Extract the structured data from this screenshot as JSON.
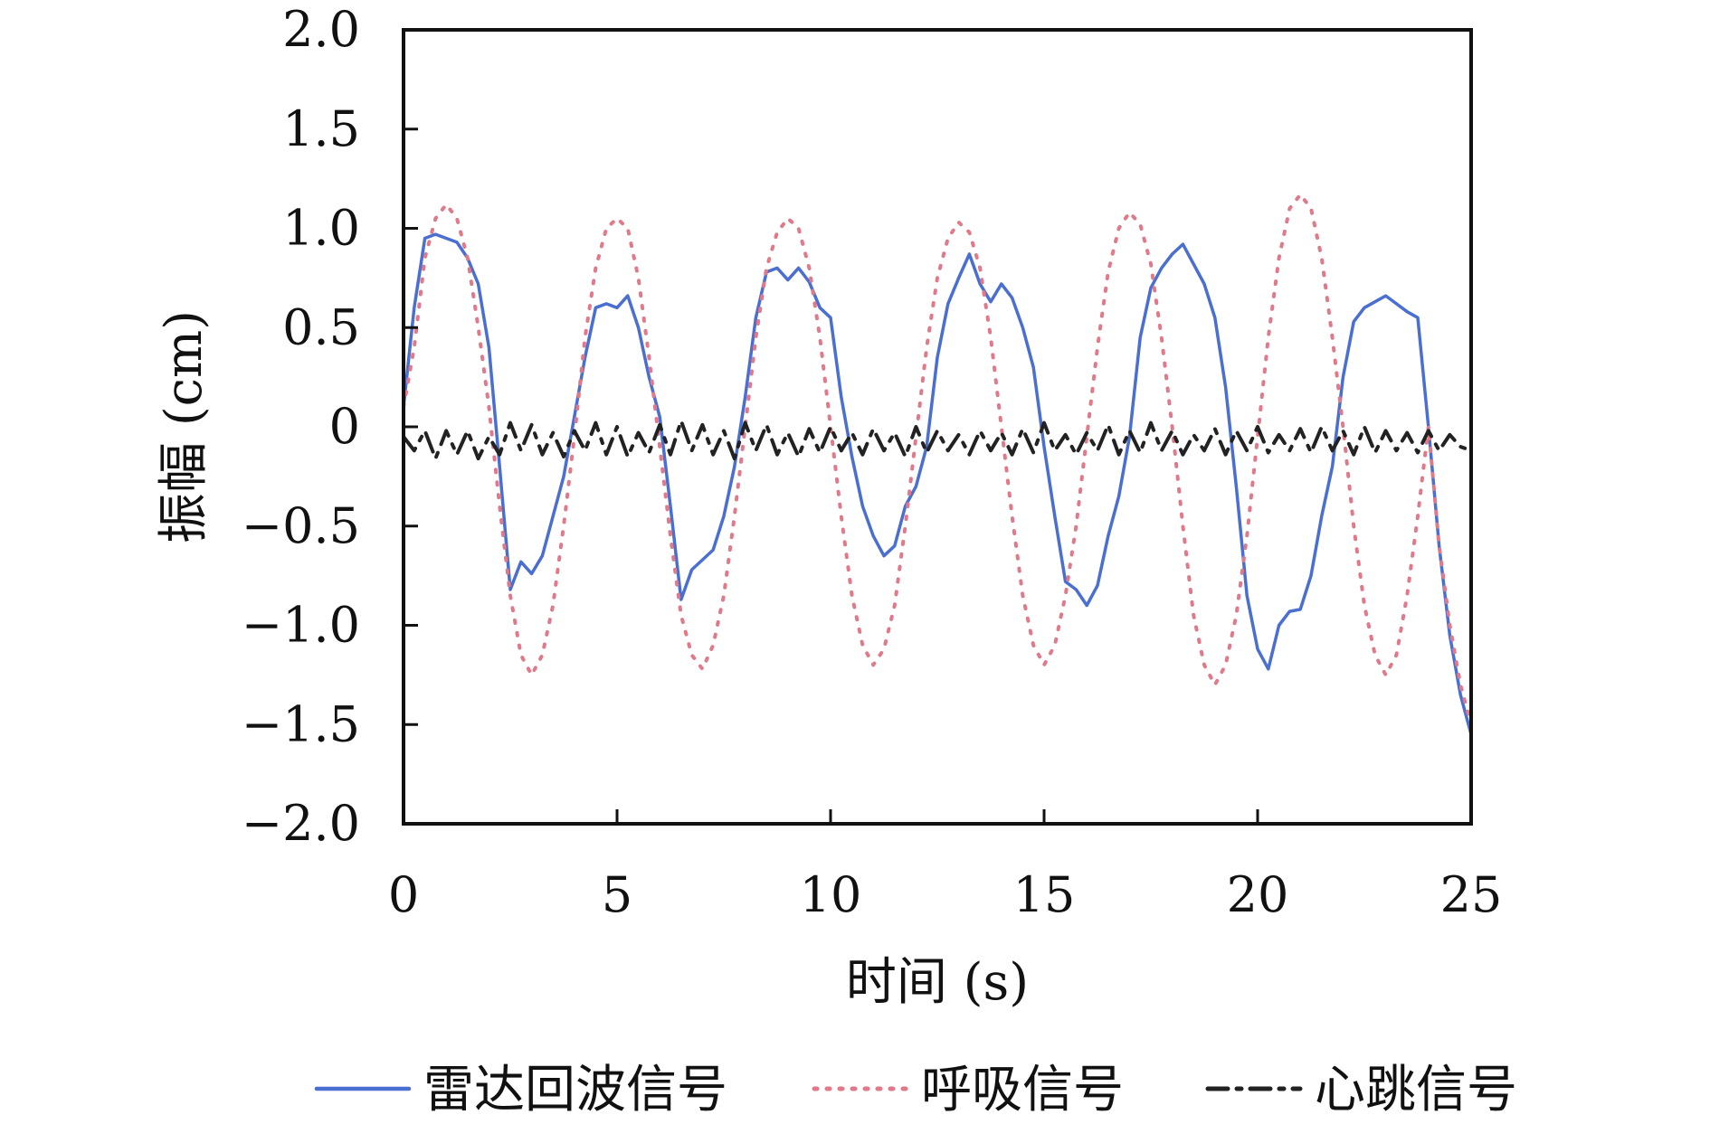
{
  "chart_data": {
    "type": "line",
    "xlabel": "时间 (s)",
    "ylabel": "振幅 (cm)",
    "xlim": [
      0,
      25
    ],
    "ylim": [
      -2.0,
      2.0
    ],
    "x_ticks": [
      "0",
      "5",
      "10",
      "15",
      "20",
      "25"
    ],
    "y_ticks": [
      "2.0",
      "1.5",
      "1.0",
      "0.5",
      "0",
      "−0.5",
      "−1.0",
      "−1.5",
      "−2.0"
    ],
    "grid": false,
    "legend_position": "bottom",
    "series": [
      {
        "name": "雷达回波信号",
        "style": "solid",
        "color": "#4a6fd0",
        "points": [
          [
            0,
            0.1
          ],
          [
            0.25,
            0.6
          ],
          [
            0.5,
            0.95
          ],
          [
            0.75,
            0.97
          ],
          [
            1.0,
            0.95
          ],
          [
            1.25,
            0.93
          ],
          [
            1.5,
            0.85
          ],
          [
            1.75,
            0.72
          ],
          [
            2.0,
            0.4
          ],
          [
            2.25,
            -0.2
          ],
          [
            2.5,
            -0.82
          ],
          [
            2.75,
            -0.68
          ],
          [
            3.0,
            -0.74
          ],
          [
            3.25,
            -0.65
          ],
          [
            3.5,
            -0.45
          ],
          [
            3.75,
            -0.25
          ],
          [
            4.0,
            0.05
          ],
          [
            4.25,
            0.35
          ],
          [
            4.5,
            0.6
          ],
          [
            4.75,
            0.62
          ],
          [
            5.0,
            0.6
          ],
          [
            5.25,
            0.66
          ],
          [
            5.5,
            0.5
          ],
          [
            5.75,
            0.25
          ],
          [
            6.0,
            0.05
          ],
          [
            6.25,
            -0.4
          ],
          [
            6.5,
            -0.87
          ],
          [
            6.75,
            -0.72
          ],
          [
            7.0,
            -0.67
          ],
          [
            7.25,
            -0.62
          ],
          [
            7.5,
            -0.45
          ],
          [
            7.75,
            -0.2
          ],
          [
            8.0,
            0.15
          ],
          [
            8.25,
            0.55
          ],
          [
            8.5,
            0.78
          ],
          [
            8.75,
            0.8
          ],
          [
            9.0,
            0.74
          ],
          [
            9.25,
            0.8
          ],
          [
            9.5,
            0.73
          ],
          [
            9.75,
            0.6
          ],
          [
            10.0,
            0.55
          ],
          [
            10.25,
            0.15
          ],
          [
            10.5,
            -0.15
          ],
          [
            10.75,
            -0.4
          ],
          [
            11.0,
            -0.55
          ],
          [
            11.25,
            -0.65
          ],
          [
            11.5,
            -0.6
          ],
          [
            11.75,
            -0.4
          ],
          [
            12.0,
            -0.3
          ],
          [
            12.25,
            -0.1
          ],
          [
            12.5,
            0.35
          ],
          [
            12.75,
            0.62
          ],
          [
            13.0,
            0.75
          ],
          [
            13.25,
            0.87
          ],
          [
            13.5,
            0.72
          ],
          [
            13.75,
            0.63
          ],
          [
            14.0,
            0.72
          ],
          [
            14.25,
            0.65
          ],
          [
            14.5,
            0.5
          ],
          [
            14.75,
            0.3
          ],
          [
            15.0,
            -0.1
          ],
          [
            15.25,
            -0.45
          ],
          [
            15.5,
            -0.78
          ],
          [
            15.75,
            -0.82
          ],
          [
            16.0,
            -0.9
          ],
          [
            16.25,
            -0.8
          ],
          [
            16.5,
            -0.55
          ],
          [
            16.75,
            -0.35
          ],
          [
            17.0,
            -0.05
          ],
          [
            17.25,
            0.45
          ],
          [
            17.5,
            0.7
          ],
          [
            17.75,
            0.8
          ],
          [
            18.0,
            0.87
          ],
          [
            18.25,
            0.92
          ],
          [
            18.5,
            0.82
          ],
          [
            18.75,
            0.72
          ],
          [
            19.0,
            0.55
          ],
          [
            19.25,
            0.2
          ],
          [
            19.5,
            -0.3
          ],
          [
            19.75,
            -0.85
          ],
          [
            20.0,
            -1.12
          ],
          [
            20.25,
            -1.22
          ],
          [
            20.5,
            -1.0
          ],
          [
            20.75,
            -0.93
          ],
          [
            21.0,
            -0.92
          ],
          [
            21.25,
            -0.75
          ],
          [
            21.5,
            -0.45
          ],
          [
            21.75,
            -0.2
          ],
          [
            22.0,
            0.25
          ],
          [
            22.25,
            0.53
          ],
          [
            22.5,
            0.6
          ],
          [
            22.75,
            0.63
          ],
          [
            23.0,
            0.66
          ],
          [
            23.25,
            0.62
          ],
          [
            23.5,
            0.58
          ],
          [
            23.75,
            0.55
          ],
          [
            24.0,
            0.0
          ],
          [
            24.25,
            -0.6
          ],
          [
            24.5,
            -1.05
          ],
          [
            24.75,
            -1.35
          ],
          [
            25.0,
            -1.55
          ]
        ]
      },
      {
        "name": "呼吸信号",
        "style": "dotted",
        "color": "#e07a8a",
        "points": [
          [
            0,
            0.1
          ],
          [
            0.25,
            0.4
          ],
          [
            0.5,
            0.85
          ],
          [
            0.75,
            1.05
          ],
          [
            1.0,
            1.12
          ],
          [
            1.25,
            1.05
          ],
          [
            1.5,
            0.85
          ],
          [
            1.75,
            0.5
          ],
          [
            2.0,
            0.1
          ],
          [
            2.25,
            -0.4
          ],
          [
            2.5,
            -0.85
          ],
          [
            2.75,
            -1.15
          ],
          [
            3.0,
            -1.25
          ],
          [
            3.25,
            -1.15
          ],
          [
            3.5,
            -0.9
          ],
          [
            3.75,
            -0.5
          ],
          [
            4.0,
            -0.05
          ],
          [
            4.25,
            0.45
          ],
          [
            4.5,
            0.8
          ],
          [
            4.75,
            1.0
          ],
          [
            5.0,
            1.05
          ],
          [
            5.25,
            1.0
          ],
          [
            5.5,
            0.75
          ],
          [
            5.75,
            0.35
          ],
          [
            6.0,
            -0.1
          ],
          [
            6.25,
            -0.55
          ],
          [
            6.5,
            -0.95
          ],
          [
            6.75,
            -1.15
          ],
          [
            7.0,
            -1.22
          ],
          [
            7.25,
            -1.1
          ],
          [
            7.5,
            -0.85
          ],
          [
            7.75,
            -0.45
          ],
          [
            8.0,
            0.0
          ],
          [
            8.25,
            0.45
          ],
          [
            8.5,
            0.8
          ],
          [
            8.75,
            0.98
          ],
          [
            9.0,
            1.05
          ],
          [
            9.25,
            1.0
          ],
          [
            9.5,
            0.8
          ],
          [
            9.75,
            0.45
          ],
          [
            10.0,
            0.0
          ],
          [
            10.25,
            -0.45
          ],
          [
            10.5,
            -0.85
          ],
          [
            10.75,
            -1.1
          ],
          [
            11.0,
            -1.2
          ],
          [
            11.25,
            -1.12
          ],
          [
            11.5,
            -0.9
          ],
          [
            11.75,
            -0.5
          ],
          [
            12.0,
            -0.05
          ],
          [
            12.25,
            0.4
          ],
          [
            12.5,
            0.75
          ],
          [
            12.75,
            0.95
          ],
          [
            13.0,
            1.03
          ],
          [
            13.25,
            0.98
          ],
          [
            13.5,
            0.8
          ],
          [
            13.75,
            0.45
          ],
          [
            14.0,
            0.0
          ],
          [
            14.25,
            -0.45
          ],
          [
            14.5,
            -0.85
          ],
          [
            14.75,
            -1.1
          ],
          [
            15.0,
            -1.2
          ],
          [
            15.25,
            -1.1
          ],
          [
            15.5,
            -0.85
          ],
          [
            15.75,
            -0.5
          ],
          [
            16.0,
            -0.05
          ],
          [
            16.25,
            0.4
          ],
          [
            16.5,
            0.78
          ],
          [
            16.75,
            1.0
          ],
          [
            17.0,
            1.08
          ],
          [
            17.25,
            1.02
          ],
          [
            17.5,
            0.82
          ],
          [
            17.75,
            0.45
          ],
          [
            18.0,
            0.0
          ],
          [
            18.25,
            -0.5
          ],
          [
            18.5,
            -0.95
          ],
          [
            18.75,
            -1.2
          ],
          [
            19.0,
            -1.3
          ],
          [
            19.25,
            -1.2
          ],
          [
            19.5,
            -0.95
          ],
          [
            19.75,
            -0.55
          ],
          [
            20.0,
            -0.05
          ],
          [
            20.25,
            0.45
          ],
          [
            20.5,
            0.85
          ],
          [
            20.75,
            1.1
          ],
          [
            21.0,
            1.17
          ],
          [
            21.25,
            1.1
          ],
          [
            21.5,
            0.85
          ],
          [
            21.75,
            0.45
          ],
          [
            22.0,
            0.0
          ],
          [
            22.25,
            -0.5
          ],
          [
            22.5,
            -0.9
          ],
          [
            22.75,
            -1.15
          ],
          [
            23.0,
            -1.25
          ],
          [
            23.25,
            -1.15
          ],
          [
            23.5,
            -0.85
          ],
          [
            23.75,
            -0.45
          ],
          [
            24.0,
            0.0
          ],
          [
            24.25,
            -0.6
          ],
          [
            24.5,
            -1.0
          ],
          [
            24.75,
            -1.3
          ],
          [
            25.0,
            -1.5
          ]
        ]
      },
      {
        "name": "心跳信号",
        "style": "dashdot",
        "color": "#222222",
        "points": [
          [
            0,
            -0.05
          ],
          [
            0.25,
            -0.12
          ],
          [
            0.5,
            -0.02
          ],
          [
            0.75,
            -0.16
          ],
          [
            1.0,
            -0.02
          ],
          [
            1.25,
            -0.14
          ],
          [
            1.5,
            -0.02
          ],
          [
            1.75,
            -0.16
          ],
          [
            2.0,
            -0.05
          ],
          [
            2.25,
            -0.14
          ],
          [
            2.5,
            0.02
          ],
          [
            2.75,
            -0.12
          ],
          [
            3.0,
            0.01
          ],
          [
            3.25,
            -0.14
          ],
          [
            3.5,
            -0.03
          ],
          [
            3.75,
            -0.15
          ],
          [
            4.0,
            -0.02
          ],
          [
            4.25,
            -0.12
          ],
          [
            4.5,
            0.02
          ],
          [
            4.75,
            -0.14
          ],
          [
            5.0,
            0.0
          ],
          [
            5.25,
            -0.15
          ],
          [
            5.5,
            -0.03
          ],
          [
            5.75,
            -0.13
          ],
          [
            6.0,
            0.01
          ],
          [
            6.25,
            -0.14
          ],
          [
            6.5,
            0.03
          ],
          [
            6.75,
            -0.12
          ],
          [
            7.0,
            0.01
          ],
          [
            7.25,
            -0.14
          ],
          [
            7.5,
            -0.02
          ],
          [
            7.75,
            -0.16
          ],
          [
            8.0,
            0.02
          ],
          [
            8.25,
            -0.12
          ],
          [
            8.5,
            0.01
          ],
          [
            8.75,
            -0.14
          ],
          [
            9.0,
            -0.03
          ],
          [
            9.25,
            -0.15
          ],
          [
            9.5,
            -0.01
          ],
          [
            9.75,
            -0.13
          ],
          [
            10.0,
            0.0
          ],
          [
            10.25,
            -0.12
          ],
          [
            10.5,
            -0.03
          ],
          [
            10.75,
            -0.14
          ],
          [
            11.0,
            -0.01
          ],
          [
            11.25,
            -0.12
          ],
          [
            11.5,
            -0.03
          ],
          [
            11.75,
            -0.15
          ],
          [
            12.0,
            0.0
          ],
          [
            12.25,
            -0.13
          ],
          [
            12.5,
            -0.02
          ],
          [
            12.75,
            -0.12
          ],
          [
            13.0,
            -0.04
          ],
          [
            13.25,
            -0.14
          ],
          [
            13.5,
            -0.02
          ],
          [
            13.75,
            -0.12
          ],
          [
            14.0,
            -0.03
          ],
          [
            14.25,
            -0.14
          ],
          [
            14.5,
            -0.01
          ],
          [
            14.75,
            -0.13
          ],
          [
            15.0,
            0.02
          ],
          [
            15.25,
            -0.12
          ],
          [
            15.5,
            -0.04
          ],
          [
            15.75,
            -0.14
          ],
          [
            16.0,
            -0.03
          ],
          [
            16.25,
            -0.12
          ],
          [
            16.5,
            0.01
          ],
          [
            16.75,
            -0.14
          ],
          [
            17.0,
            -0.02
          ],
          [
            17.25,
            -0.13
          ],
          [
            17.5,
            0.02
          ],
          [
            17.75,
            -0.12
          ],
          [
            18.0,
            -0.02
          ],
          [
            18.25,
            -0.14
          ],
          [
            18.5,
            -0.04
          ],
          [
            18.75,
            -0.12
          ],
          [
            19.0,
            -0.01
          ],
          [
            19.25,
            -0.14
          ],
          [
            19.5,
            -0.02
          ],
          [
            19.75,
            -0.12
          ],
          [
            20.0,
            0.0
          ],
          [
            20.25,
            -0.13
          ],
          [
            20.5,
            -0.04
          ],
          [
            20.75,
            -0.12
          ],
          [
            21.0,
            -0.01
          ],
          [
            21.25,
            -0.13
          ],
          [
            21.5,
            0.0
          ],
          [
            21.75,
            -0.12
          ],
          [
            22.0,
            -0.02
          ],
          [
            22.25,
            -0.14
          ],
          [
            22.5,
            0.0
          ],
          [
            22.75,
            -0.13
          ],
          [
            23.0,
            -0.02
          ],
          [
            23.25,
            -0.12
          ],
          [
            23.5,
            -0.03
          ],
          [
            23.75,
            -0.13
          ],
          [
            24.0,
            -0.02
          ],
          [
            24.25,
            -0.12
          ],
          [
            24.5,
            -0.04
          ],
          [
            24.75,
            -0.1
          ],
          [
            25.0,
            -0.12
          ]
        ]
      }
    ]
  }
}
